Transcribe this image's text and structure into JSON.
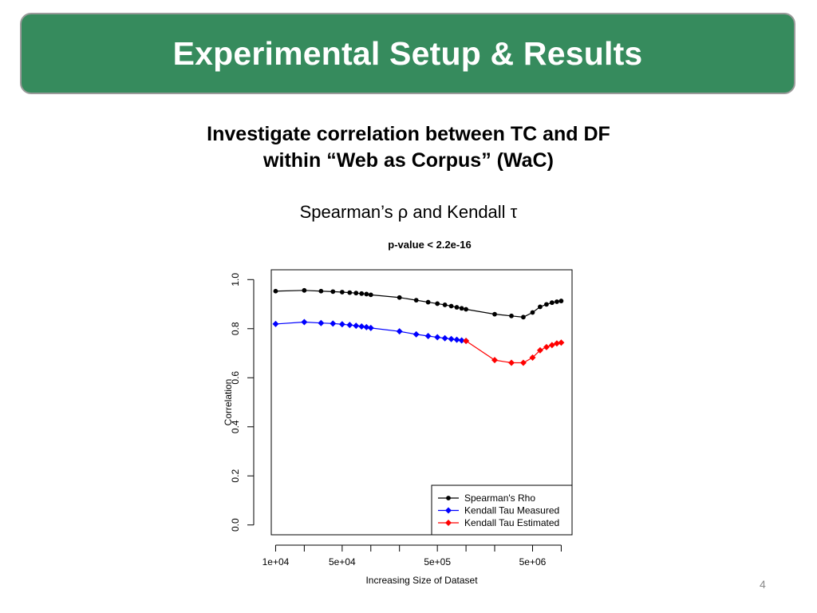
{
  "slide": {
    "title": "Experimental Setup & Results",
    "subtitle_line1": "Investigate correlation between TC and DF",
    "subtitle_line2": "within “Web as Corpus” (WaC)",
    "stats_line": "Spearman’s ρ and Kendall τ",
    "page_number": "4",
    "colors": {
      "header_bg": "#368b5d",
      "header_border": "#9a9a9a",
      "header_text": "#ffffff"
    }
  },
  "chart_data": {
    "type": "line",
    "title": "p-value < 2.2e-16",
    "xlabel": "Increasing Size of Dataset",
    "ylabel": "Correlation",
    "x_scale": "log",
    "xlim": [
      9000,
      13000000
    ],
    "ylim": [
      -0.04,
      1.04
    ],
    "x_ticks": [
      10000,
      20000,
      50000,
      100000,
      200000,
      500000,
      1000000,
      2000000,
      5000000,
      10000000
    ],
    "x_tick_labels": [
      "1e+04",
      "",
      "5e+04",
      "",
      "",
      "5e+05",
      "",
      "",
      "5e+06",
      ""
    ],
    "y_ticks": [
      0.0,
      0.2,
      0.4,
      0.6,
      0.8,
      1.0
    ],
    "y_tick_labels": [
      "0.0",
      "0.2",
      "0.4",
      "0.6",
      "0.8",
      "1.0"
    ],
    "grid": false,
    "legend_position": "bottom-right",
    "series": [
      {
        "name": "Spearman's Rho",
        "color": "#000000",
        "marker": "circle",
        "x": [
          10000,
          20000,
          30000,
          40000,
          50000,
          60000,
          70000,
          80000,
          90000,
          100000,
          200000,
          300000,
          400000,
          500000,
          600000,
          700000,
          800000,
          900000,
          1000000,
          2000000,
          3000000,
          4000000,
          5000000,
          6000000,
          7000000,
          8000000,
          9000000,
          10000000
        ],
        "y": [
          0.953,
          0.956,
          0.953,
          0.951,
          0.949,
          0.947,
          0.945,
          0.943,
          0.941,
          0.938,
          0.927,
          0.916,
          0.908,
          0.902,
          0.897,
          0.892,
          0.887,
          0.883,
          0.879,
          0.859,
          0.852,
          0.847,
          0.866,
          0.889,
          0.899,
          0.906,
          0.91,
          0.913
        ]
      },
      {
        "name": "Kendall Tau Measured",
        "color": "#0000ff",
        "marker": "diamond",
        "x": [
          10000,
          20000,
          30000,
          40000,
          50000,
          60000,
          70000,
          80000,
          90000,
          100000,
          200000,
          300000,
          400000,
          500000,
          600000,
          700000,
          800000,
          900000,
          1000000
        ],
        "y": [
          0.819,
          0.827,
          0.823,
          0.821,
          0.818,
          0.815,
          0.812,
          0.809,
          0.806,
          0.803,
          0.789,
          0.777,
          0.77,
          0.765,
          0.761,
          0.758,
          0.755,
          0.752,
          0.75
        ]
      },
      {
        "name": "Kendall Tau Estimated",
        "color": "#ff0000",
        "marker": "diamond",
        "x": [
          1000000,
          2000000,
          3000000,
          4000000,
          5000000,
          6000000,
          7000000,
          8000000,
          9000000,
          10000000
        ],
        "y": [
          0.75,
          0.672,
          0.661,
          0.661,
          0.682,
          0.712,
          0.725,
          0.733,
          0.74,
          0.743
        ]
      }
    ]
  }
}
